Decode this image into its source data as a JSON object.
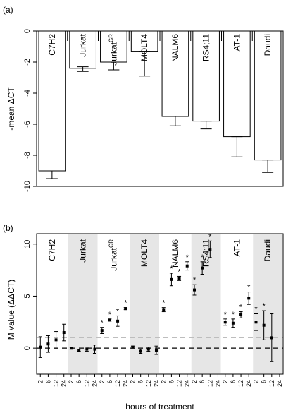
{
  "chart_data": [
    {
      "panel_label": "(a)",
      "type": "bar",
      "ylabel": "-mean ΔCT",
      "ylim": [
        -10,
        0
      ],
      "yticks": [
        0,
        -2,
        -4,
        -6,
        -8,
        -10
      ],
      "categories": [
        "C7H2",
        "Jurkat",
        "Jurkat",
        "MOLT4",
        "NALM6",
        "RS4;11",
        "AT-1",
        "Daudi"
      ],
      "category_superscripts": [
        "",
        "",
        "GR",
        "",
        "",
        "",
        "",
        ""
      ],
      "values": [
        -9.0,
        -2.4,
        -2.0,
        -1.3,
        -5.5,
        -5.8,
        -6.8,
        -8.3
      ],
      "error_low": [
        -9.5,
        -2.6,
        -2.5,
        -2.9,
        -6.1,
        -6.3,
        -8.1,
        -9.1
      ],
      "error_high": [
        -9.0,
        -2.3,
        -2.0,
        -1.3,
        -5.5,
        -5.8,
        -6.8,
        -8.3
      ],
      "grid": false
    },
    {
      "panel_label": "(b)",
      "type": "scatter",
      "ylabel": "M value (ΔΔCT)",
      "xlabel": "hours of treatment",
      "ylim": [
        -2.5,
        11
      ],
      "yticks": [
        0,
        5,
        10
      ],
      "x": [
        2,
        6,
        12,
        24
      ],
      "reference_lines": [
        {
          "y": 0,
          "style": "dashed",
          "color": "#000000"
        },
        {
          "y": 1,
          "style": "dashed",
          "color": "#bdbdbd"
        }
      ],
      "groups": [
        {
          "name": "C7H2",
          "superscript": "",
          "shaded": false,
          "values": [
            0.1,
            0.4,
            0.8,
            1.5
          ],
          "err": [
            1.0,
            0.8,
            0.8,
            0.8
          ],
          "significant": [
            false,
            false,
            false,
            false
          ]
        },
        {
          "name": "Jurkat",
          "superscript": "",
          "shaded": true,
          "values": [
            0.0,
            -0.2,
            -0.1,
            -0.1
          ],
          "err": [
            0.1,
            0.1,
            0.2,
            0.4
          ],
          "significant": [
            false,
            false,
            false,
            false
          ]
        },
        {
          "name": "Jurkat",
          "superscript": "GR",
          "shaded": false,
          "values": [
            1.7,
            2.7,
            2.6,
            3.8
          ],
          "err": [
            0.3,
            0.1,
            0.5,
            0.1
          ],
          "significant": [
            true,
            true,
            true,
            true
          ]
        },
        {
          "name": "MOLT4",
          "superscript": "",
          "shaded": true,
          "values": [
            0.1,
            -0.3,
            -0.1,
            -0.2
          ],
          "err": [
            0.1,
            0.2,
            0.2,
            0.4
          ],
          "significant": [
            false,
            false,
            false,
            false
          ]
        },
        {
          "name": "NALM6",
          "superscript": "",
          "shaded": false,
          "values": [
            3.7,
            6.6,
            6.7,
            7.9
          ],
          "err": [
            0.2,
            0.6,
            0.2,
            0.4
          ],
          "significant": [
            true,
            true,
            true,
            true
          ]
        },
        {
          "name": "RS4;11",
          "superscript": "",
          "shaded": true,
          "values": [
            5.6,
            7.7,
            9.5,
            null
          ],
          "err": [
            0.5,
            0.6,
            0.8,
            null
          ],
          "significant": [
            true,
            true,
            true,
            false
          ]
        },
        {
          "name": "AT-1",
          "superscript": "",
          "shaded": false,
          "values": [
            2.5,
            2.4,
            3.2,
            4.8
          ],
          "err": [
            0.3,
            0.4,
            0.3,
            0.6
          ],
          "significant": [
            true,
            true,
            true,
            true
          ]
        },
        {
          "name": "Daudi",
          "superscript": "",
          "shaded": true,
          "values": [
            2.5,
            2.2,
            1.0,
            null
          ],
          "err": [
            0.8,
            1.4,
            2.3,
            null
          ],
          "significant": [
            true,
            true,
            false,
            false
          ]
        }
      ]
    }
  ]
}
